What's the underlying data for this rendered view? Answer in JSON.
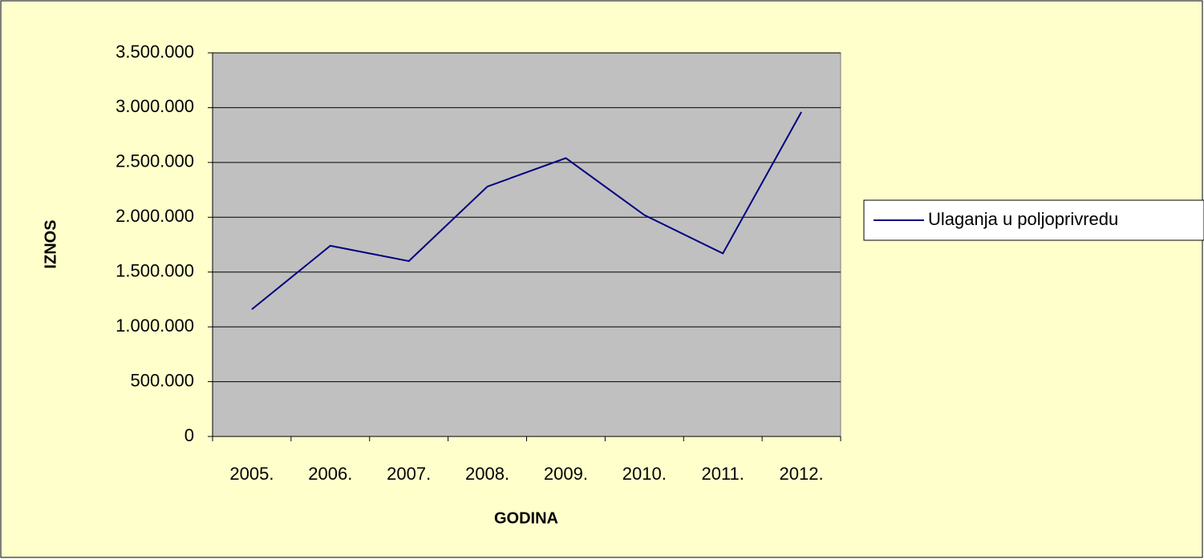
{
  "chart_data": {
    "type": "line",
    "categories": [
      "2005.",
      "2006.",
      "2007.",
      "2008.",
      "2009.",
      "2010.",
      "2011.",
      "2012."
    ],
    "series": [
      {
        "name": "Ulaganja u poljoprivredu",
        "color": "#000080",
        "values": [
          1160000,
          1740000,
          1600000,
          2280000,
          2540000,
          2020000,
          1670000,
          2960000
        ]
      }
    ],
    "xlabel": "GODINA",
    "ylabel": "IZNOS",
    "ylim": [
      0,
      3500000
    ],
    "yticks": [
      0,
      {
        "value": 500000,
        "label": "500.000"
      },
      {
        "value": 1000000,
        "label": "1.000.000"
      },
      {
        "value": 1500000,
        "label": "1.500.000"
      },
      {
        "value": 2000000,
        "label": "2.000.000"
      },
      {
        "value": 2500000,
        "label": "2.500.000"
      },
      {
        "value": 3000000,
        "label": "3.000.000"
      },
      {
        "value": 3500000,
        "label": "3.500.000"
      }
    ],
    "grid": true,
    "legend": "right",
    "plot_background": "#c0c0c0"
  }
}
